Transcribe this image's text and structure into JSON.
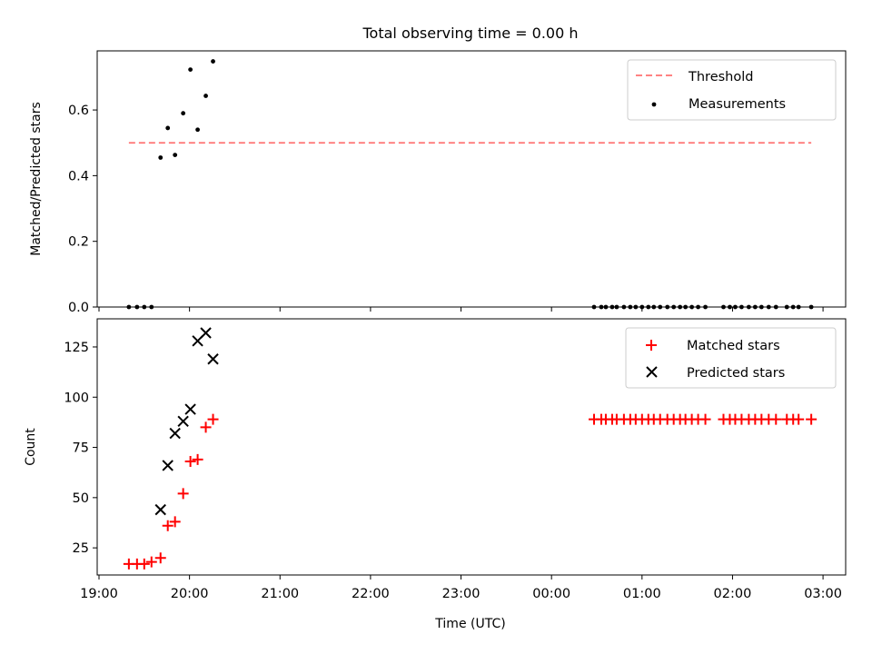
{
  "figure": {
    "title": "Total observing time = 0.00 h",
    "xlabel": "Time (UTC)",
    "xticks": [
      "19:00",
      "20:00",
      "21:00",
      "22:00",
      "23:00",
      "00:00",
      "01:00",
      "02:00",
      "03:00"
    ]
  },
  "chart_data": [
    {
      "type": "scatter",
      "panel": "top",
      "ylabel": "Matched/Predicted stars",
      "ylim": [
        0,
        0.78
      ],
      "yticks": [
        0.0,
        0.2,
        0.4,
        0.6
      ],
      "yticklabels": [
        "0.0",
        "0.2",
        "0.4",
        "0.6"
      ],
      "xlim_hours": [
        18.98,
        27.25
      ],
      "legend_position": "upper right",
      "threshold": {
        "name": "Threshold",
        "value": 0.5,
        "x_start_hours": 19.33,
        "x_end_hours": 26.87,
        "color": "#ff7070"
      },
      "series": [
        {
          "name": "Measurements",
          "color": "#000000",
          "x_hours": [
            19.33,
            19.42,
            19.5,
            19.58,
            19.68,
            19.76,
            19.84,
            19.93,
            20.01,
            20.09,
            20.18,
            20.26,
            24.47,
            24.55,
            24.6,
            24.67,
            24.72,
            24.8,
            24.87,
            24.93,
            25.0,
            25.07,
            25.13,
            25.2,
            25.28,
            25.35,
            25.42,
            25.48,
            25.55,
            25.62,
            25.7,
            25.9,
            25.97,
            26.03,
            26.1,
            26.18,
            26.25,
            26.32,
            26.4,
            26.48,
            26.6,
            26.67,
            26.73,
            26.87
          ],
          "values": [
            0,
            0,
            0,
            0,
            0.455,
            0.545,
            0.463,
            0.59,
            0.723,
            0.54,
            0.643,
            0.748,
            0,
            0,
            0,
            0,
            0,
            0,
            0,
            0,
            0,
            0,
            0,
            0,
            0,
            0,
            0,
            0,
            0,
            0,
            0,
            0,
            0,
            0,
            0,
            0,
            0,
            0,
            0,
            0,
            0,
            0,
            0,
            0
          ]
        }
      ]
    },
    {
      "type": "scatter",
      "panel": "bottom",
      "ylabel": "Count",
      "ylim": [
        11.5,
        139
      ],
      "yticks": [
        25,
        50,
        75,
        100,
        125
      ],
      "yticklabels": [
        "25",
        "50",
        "75",
        "100",
        "125"
      ],
      "xlim_hours": [
        18.98,
        27.25
      ],
      "legend_position": "upper right",
      "series": [
        {
          "name": "Matched stars",
          "marker": "+",
          "color": "#ff0000",
          "x_hours": [
            19.33,
            19.42,
            19.5,
            19.58,
            19.68,
            19.76,
            19.84,
            19.93,
            20.01,
            20.09,
            20.18,
            20.26,
            24.47,
            24.55,
            24.6,
            24.67,
            24.72,
            24.8,
            24.87,
            24.93,
            25.0,
            25.07,
            25.13,
            25.2,
            25.28,
            25.35,
            25.42,
            25.48,
            25.55,
            25.62,
            25.7,
            25.9,
            25.97,
            26.03,
            26.1,
            26.18,
            26.25,
            26.32,
            26.4,
            26.48,
            26.6,
            26.67,
            26.73,
            26.87
          ],
          "values": [
            17,
            17,
            17,
            18,
            20,
            36,
            38,
            52,
            68,
            69,
            85,
            89,
            89,
            89,
            89,
            89,
            89,
            89,
            89,
            89,
            89,
            89,
            89,
            89,
            89,
            89,
            89,
            89,
            89,
            89,
            89,
            89,
            89,
            89,
            89,
            89,
            89,
            89,
            89,
            89,
            89,
            89,
            89,
            89
          ]
        },
        {
          "name": "Predicted stars",
          "marker": "x",
          "color": "#000000",
          "x_hours": [
            19.68,
            19.76,
            19.84,
            19.93,
            20.01,
            20.09,
            20.18,
            20.26
          ],
          "values": [
            44,
            66,
            82,
            88,
            94,
            128,
            132,
            119
          ]
        }
      ]
    }
  ]
}
